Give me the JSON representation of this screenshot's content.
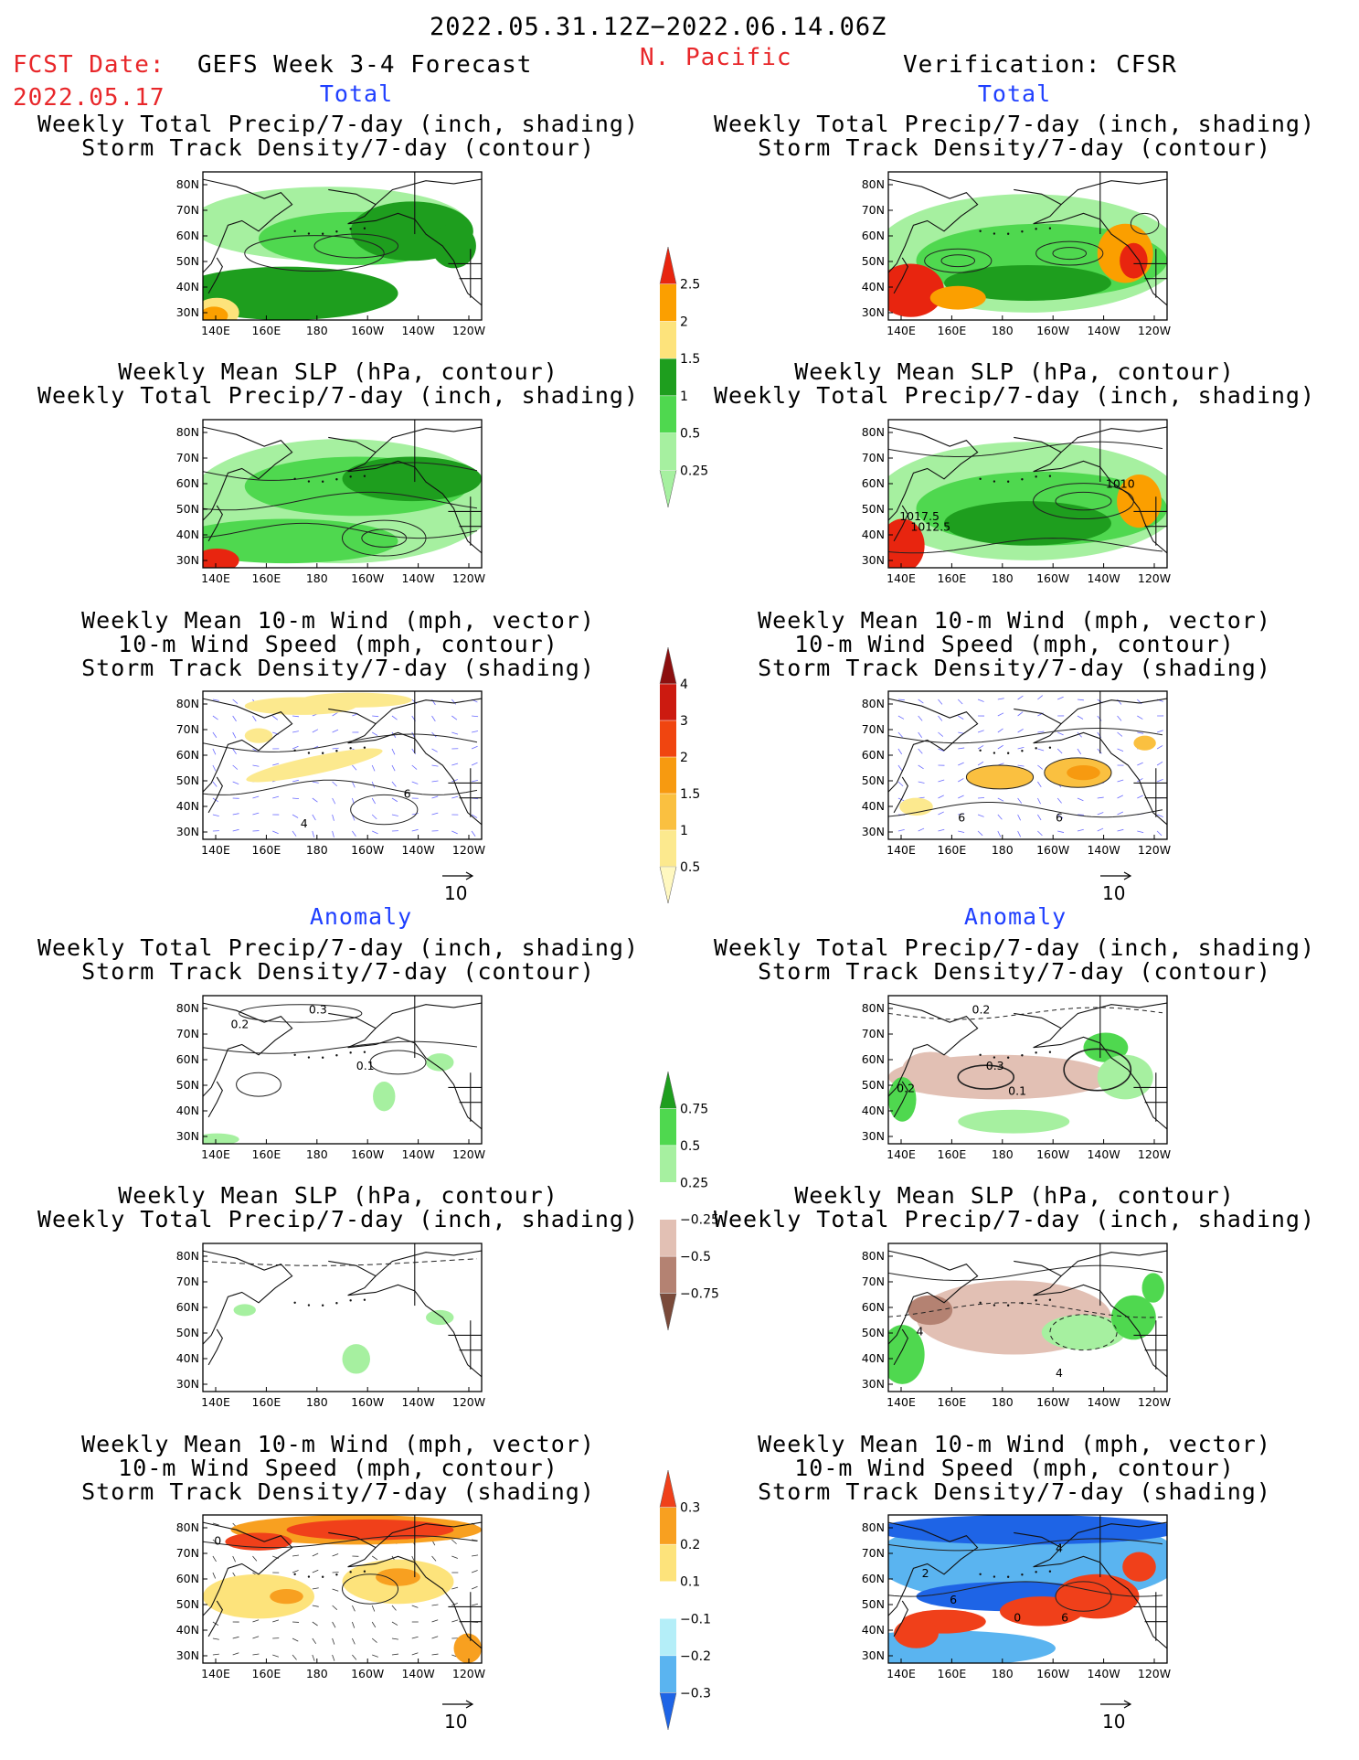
{
  "header": {
    "period": "2022.05.31.12Z−2022.06.14.06Z",
    "region": "N. Pacific",
    "fcst_label": "FCST Date:",
    "fcst_date": "2022.05.17",
    "left_title": "GEFS Week 3-4 Forecast",
    "right_title": "Verification: CFSR"
  },
  "sections": {
    "total": "Total",
    "anomaly": "Anomaly"
  },
  "panel_titles": {
    "precip_storm": [
      "Weekly Total Precip/7-day (inch, shading)",
      "Storm Track Density/7-day (contour)"
    ],
    "slp_precip": [
      "Weekly Mean SLP (hPa, contour)",
      "Weekly Total Precip/7-day (inch, shading)"
    ],
    "wind_storm": [
      "Weekly Mean 10-m Wind (mph, vector)",
      "10-m Wind Speed (mph, contour)",
      "Storm Track Density/7-day (shading)"
    ]
  },
  "axes": {
    "lat": [
      "80N",
      "70N",
      "60N",
      "50N",
      "40N",
      "30N"
    ],
    "lon": [
      "140E",
      "160E",
      "180",
      "160W",
      "140W",
      "120W"
    ]
  },
  "vector_ref": "10",
  "colorbars": {
    "precip_total": {
      "labels": [
        "2.5",
        "2",
        "1.5",
        "1",
        "0.5",
        "0.25"
      ],
      "colors": [
        "#e8250f",
        "#fb9f00",
        "#fde37b",
        "#1e9e1e",
        "#4fd84f",
        "#a6f0a0"
      ]
    },
    "storm_total": {
      "labels": [
        "4",
        "3",
        "2",
        "1.5",
        "1",
        "0.5"
      ],
      "colors": [
        "#8c0f0f",
        "#cc1a10",
        "#f04510",
        "#f79a10",
        "#fac040",
        "#fce98e",
        "#fff8c0"
      ]
    },
    "precip_anom": {
      "labels": [
        "0.75",
        "0.5",
        "0.25",
        "−0.25",
        "−0.5",
        "−0.75"
      ],
      "colors": [
        "#1e9e1e",
        "#4fd84f",
        "#a6f0a0",
        "#ffffff",
        "#e2c0b4",
        "#b48272",
        "#7a4a3a"
      ]
    },
    "storm_anom": {
      "labels": [
        "0.3",
        "0.2",
        "0.1",
        "−0.1",
        "−0.2",
        "−0.3"
      ],
      "colors": [
        "#f0401a",
        "#f8a020",
        "#fde37b",
        "#ffffff",
        "#b4eef8",
        "#5ab4f0",
        "#1e64e6"
      ]
    }
  },
  "contour_labels": {
    "anom_precip_fcst": [
      "0.2",
      "0.3",
      "0.1"
    ],
    "anom_precip_ver": [
      "0.2",
      "0.3",
      "0.2",
      "0.1"
    ],
    "slp_ver": [
      "1010",
      "1017.5",
      "1012.5"
    ],
    "wind_fcst": [
      "6",
      "4"
    ],
    "wind_ver": [
      "6",
      "6"
    ],
    "anom_slp_ver": [
      "4",
      "4"
    ],
    "anom_wind_fcst": [
      "0"
    ],
    "anom_wind_ver": [
      "4",
      "2",
      "6",
      "0",
      "6"
    ]
  }
}
